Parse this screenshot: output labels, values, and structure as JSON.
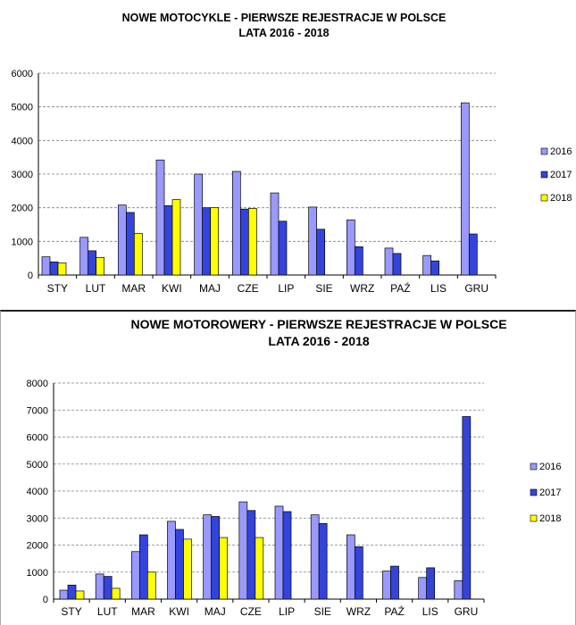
{
  "colors": {
    "s2016": "#9999ff",
    "s2017": "#3344dd",
    "s2018": "#ffff00",
    "grid": "#808080"
  },
  "chart_data": [
    {
      "type": "bar",
      "title": "NOWE MOTOCYKLE - PIERWSZE REJESTRACJE W POLSCE",
      "subtitle": "LATA 2016 - 2018",
      "xlabel": "",
      "ylabel": "",
      "ylim": [
        0,
        6000
      ],
      "yticks": [
        "0",
        "1000",
        "2000",
        "3000",
        "4000",
        "5000",
        "6000"
      ],
      "categories": [
        "STY",
        "LUT",
        "MAR",
        "KWI",
        "MAJ",
        "CZE",
        "LIP",
        "SIE",
        "WRZ",
        "PAŹ",
        "LIS",
        "GRU"
      ],
      "grid": true,
      "legend_position": "right",
      "series": [
        {
          "name": "2016",
          "values": [
            540,
            1120,
            2080,
            3420,
            3000,
            3080,
            2440,
            2020,
            1640,
            800,
            580,
            5120
          ]
        },
        {
          "name": "2017",
          "values": [
            390,
            720,
            1860,
            2060,
            2000,
            1960,
            1600,
            1360,
            840,
            640,
            420,
            1220
          ]
        },
        {
          "name": "2018",
          "values": [
            360,
            520,
            1240,
            2240,
            2000,
            1980,
            null,
            null,
            null,
            null,
            null,
            null
          ]
        }
      ]
    },
    {
      "type": "bar",
      "title": "NOWE MOTOROWERY - PIERWSZE REJESTRACJE W POLSCE",
      "subtitle": "LATA 2016 - 2018",
      "xlabel": "",
      "ylabel": "",
      "ylim": [
        0,
        8000
      ],
      "yticks": [
        "0",
        "1000",
        "2000",
        "3000",
        "4000",
        "5000",
        "6000",
        "7000",
        "8000"
      ],
      "categories": [
        "STY",
        "LUT",
        "MAR",
        "KWI",
        "MAJ",
        "CZE",
        "LIP",
        "SIE",
        "WRZ",
        "PAŹ",
        "LIS",
        "GRU"
      ],
      "grid": true,
      "legend_position": "right",
      "series": [
        {
          "name": "2016",
          "values": [
            330,
            930,
            1760,
            2880,
            3120,
            3600,
            3440,
            3120,
            2380,
            1040,
            800,
            680
          ]
        },
        {
          "name": "2017",
          "values": [
            520,
            840,
            2380,
            2580,
            3060,
            3280,
            3240,
            2800,
            1940,
            1220,
            1160,
            6760
          ]
        },
        {
          "name": "2018",
          "values": [
            300,
            400,
            1000,
            2220,
            2280,
            2280,
            null,
            null,
            null,
            null,
            null,
            null
          ]
        }
      ]
    }
  ]
}
